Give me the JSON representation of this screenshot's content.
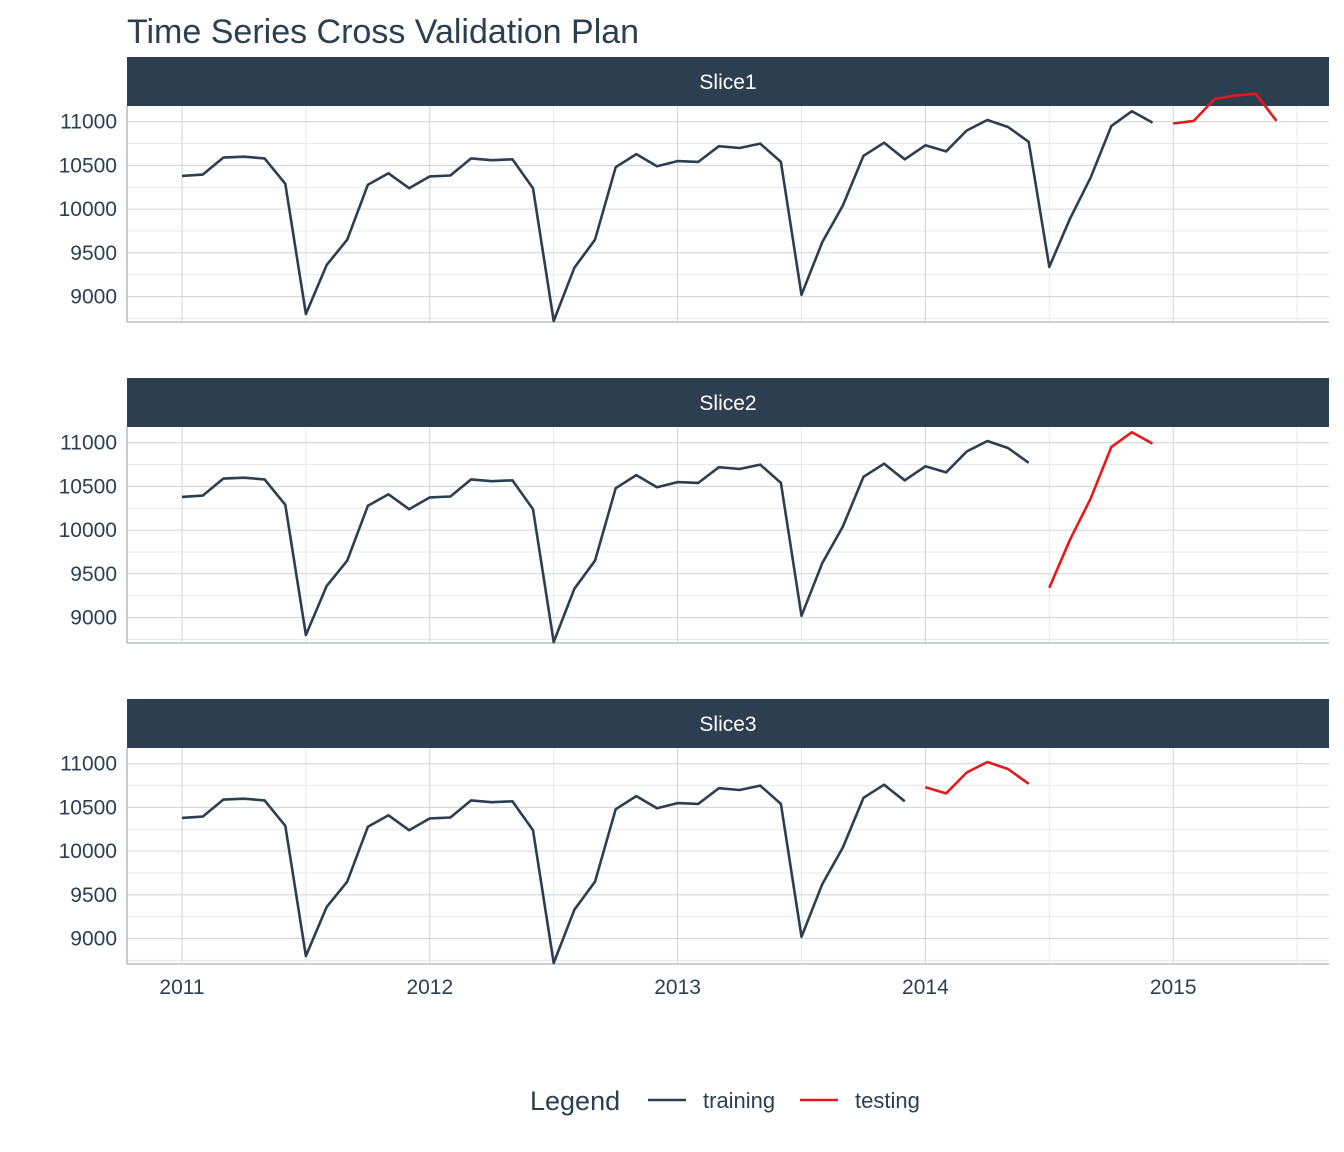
{
  "chart_data": {
    "type": "line",
    "title": "Time Series Cross Validation Plan",
    "xlabel": "",
    "ylabel": "",
    "x_ticks": [
      "2011",
      "2012",
      "2013",
      "2014",
      "2015"
    ],
    "y_ticks": [
      9000,
      9500,
      10000,
      10500,
      11000
    ],
    "ylim": [
      8720,
      11180
    ],
    "grid": true,
    "legend": {
      "title": "Legend",
      "position": "bottom",
      "entries": [
        {
          "name": "training",
          "color": "#2c3e50"
        },
        {
          "name": "testing",
          "color": "#e31a1c"
        }
      ]
    },
    "colors": {
      "training": "#2c3e50",
      "testing": "#e31a1c",
      "strip": "#2c3e50"
    },
    "values": [
      10380,
      10395,
      10590,
      10600,
      10580,
      10290,
      8800,
      9360,
      9650,
      10280,
      10410,
      10240,
      10375,
      10385,
      10580,
      10560,
      10570,
      10240,
      8720,
      9330,
      9650,
      10480,
      10630,
      10490,
      10550,
      10540,
      10720,
      10700,
      10750,
      10540,
      9020,
      9620,
      10040,
      10610,
      10760,
      10570,
      10730,
      10660,
      10900,
      11020,
      10940,
      10770,
      9340,
      9890,
      10360,
      10950,
      11120,
      10990,
      10980,
      11010,
      11260,
      11300,
      11320,
      11010
    ],
    "panels": [
      {
        "label": "Slice1",
        "training_range": [
          "2011-01",
          "2014-12"
        ],
        "testing_range": [
          "2015-01",
          "2015-06"
        ]
      },
      {
        "label": "Slice2",
        "training_range": [
          "2011-01",
          "2014-06"
        ],
        "testing_range": [
          "2014-07",
          "2014-12"
        ]
      },
      {
        "label": "Slice3",
        "training_range": [
          "2011-01",
          "2013-12"
        ],
        "testing_range": [
          "2014-01",
          "2014-06"
        ]
      }
    ]
  }
}
